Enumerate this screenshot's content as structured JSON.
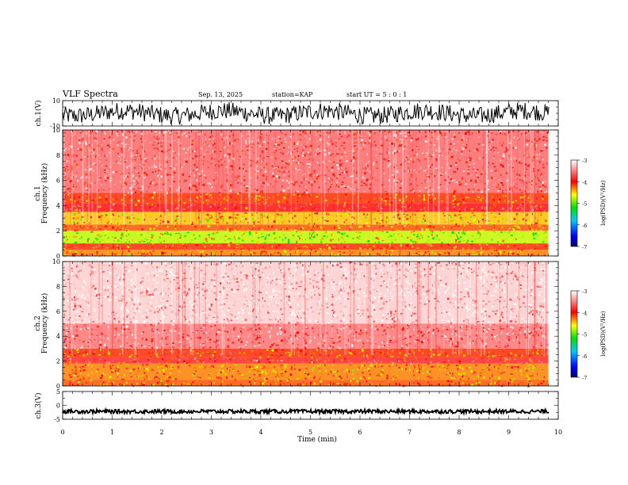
{
  "header": {
    "title": "VLF Spectra",
    "date": "Sep. 13, 2025",
    "station": "station=KAP",
    "start": "start  UT =  5 : 0 : 1"
  },
  "chart_data": [
    {
      "type": "line",
      "name": "ch1-waveform",
      "ylabel": "ch.1(V)",
      "ylim": [
        -10,
        10
      ],
      "ytick_labels": [
        "10",
        "-10"
      ],
      "xlim": [
        0,
        10
      ],
      "description_values": "noisy waveform spanning about -8 to 9 V"
    },
    {
      "type": "heatmap",
      "name": "ch1-spectrogram",
      "ylabel_top": "ch.1",
      "ylabel": "Frequency (kHz)",
      "ylim": [
        0,
        10
      ],
      "ytick_labels": [
        "0",
        "2",
        "4",
        "6",
        "8",
        "10"
      ],
      "xlim": [
        0,
        9.8
      ],
      "colorbar": {
        "label": "log(PSD)(V²/Hz)",
        "range": [
          -7,
          -3
        ],
        "tick_labels": [
          "-3",
          "-4",
          "-5",
          "-6",
          "-7"
        ]
      },
      "bands": [
        {
          "fmin": 0,
          "fmax": 0.5,
          "level": -4.3
        },
        {
          "fmin": 0.5,
          "fmax": 1.0,
          "level": -4.1
        },
        {
          "fmin": 1.0,
          "fmax": 2.0,
          "level": -4.75
        },
        {
          "fmin": 2.0,
          "fmax": 2.5,
          "level": -4.2
        },
        {
          "fmin": 2.5,
          "fmax": 3.5,
          "level": -4.45
        },
        {
          "fmin": 3.5,
          "fmax": 4.2,
          "level": -3.95
        },
        {
          "fmin": 4.2,
          "fmax": 5.0,
          "level": -4.1
        },
        {
          "fmin": 5.0,
          "fmax": 10.0,
          "level": -3.6
        }
      ]
    },
    {
      "type": "heatmap",
      "name": "ch2-spectrogram",
      "ylabel_top": "ch.2",
      "ylabel": "Frequency (kHz)",
      "ylim": [
        0,
        10
      ],
      "ytick_labels": [
        "0",
        "2",
        "4",
        "6",
        "8",
        "10"
      ],
      "xlim": [
        0,
        9.8
      ],
      "colorbar": {
        "label": "log(PSD)(V²/Hz)",
        "range": [
          -7,
          -3
        ],
        "tick_labels": [
          "-3",
          "-4",
          "-5",
          "-6",
          "-7"
        ]
      },
      "bands": [
        {
          "fmin": 0,
          "fmax": 0.5,
          "level": -4.2
        },
        {
          "fmin": 0.5,
          "fmax": 1.8,
          "level": -4.3
        },
        {
          "fmin": 1.8,
          "fmax": 2.3,
          "level": -3.85
        },
        {
          "fmin": 2.3,
          "fmax": 3.0,
          "level": -4.1
        },
        {
          "fmin": 3.0,
          "fmax": 5.0,
          "level": -3.55
        },
        {
          "fmin": 5.0,
          "fmax": 10.0,
          "level": -3.2
        }
      ]
    },
    {
      "type": "line",
      "name": "ch3-waveform",
      "ylabel": "ch.3(V)",
      "ylim": [
        -5,
        5
      ],
      "ytick_labels": [
        "5",
        "0",
        "-5"
      ],
      "xlim": [
        0,
        10
      ],
      "xlabel": "Time (min)",
      "xtick_labels": [
        "0",
        "1",
        "2",
        "3",
        "4",
        "5",
        "6",
        "7",
        "8",
        "9",
        "10"
      ],
      "description_values": "nearly constant signal around -2 V with small spread"
    }
  ]
}
